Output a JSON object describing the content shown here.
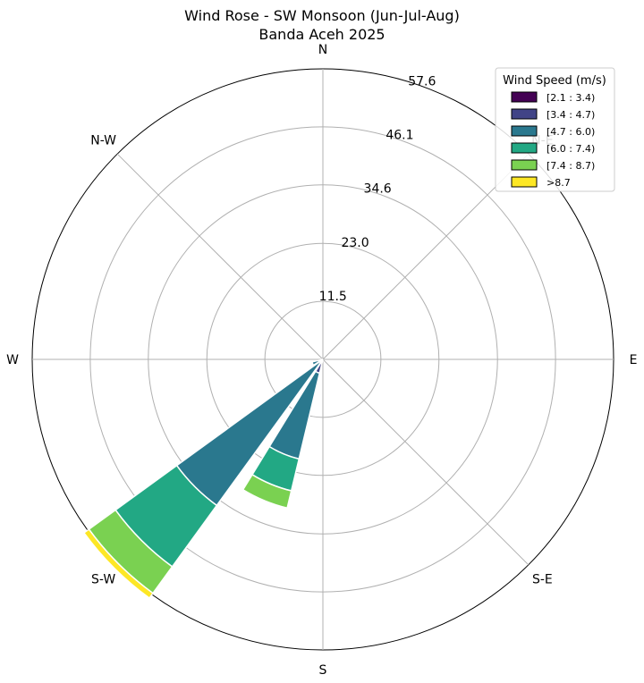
{
  "chart_data": {
    "type": "windrose",
    "title": "Wind Rose - SW Monsoon (Jun-Jul-Aug)",
    "subtitle": "Banda Aceh 2025",
    "directions": [
      "N",
      "N-E",
      "E",
      "S-E",
      "S",
      "S-W",
      "W",
      "N-W"
    ],
    "radial_ticks": [
      "11.5",
      "23.0",
      "34.6",
      "46.1",
      "57.6"
    ],
    "radial_tick_values": [
      11.5,
      23.0,
      34.6,
      46.1,
      57.6
    ],
    "rmax": 57.6,
    "legend": {
      "title": "Wind Speed (m/s)",
      "placement": "top-right",
      "bins": [
        {
          "label": "[2.1 : 3.4)",
          "color": "#440154"
        },
        {
          "label": "[3.4 : 4.7)",
          "color": "#414487"
        },
        {
          "label": "[4.7 : 6.0)",
          "color": "#2a788e"
        },
        {
          "label": "[6.0 : 7.4)",
          "color": "#22a884"
        },
        {
          "label": "[7.4 : 8.7)",
          "color": "#7ad151"
        },
        {
          "label": ">8.7",
          "color": "#fde725"
        }
      ]
    },
    "bars": [
      {
        "direction_deg": 202.5,
        "values": [
          0.3,
          2.5,
          17.5,
          6.5,
          3.5,
          0.0
        ]
      },
      {
        "direction_deg": 225.0,
        "values": [
          0.3,
          0.5,
          35.0,
          15.0,
          6.5,
          1.2
        ]
      },
      {
        "direction_deg": 247.5,
        "values": [
          0.3,
          0.6,
          1.3,
          0.0,
          0.0,
          0.0
        ]
      },
      {
        "direction_deg": 270.0,
        "values": [
          0.2,
          0.0,
          0.0,
          0.0,
          0.0,
          0.0
        ]
      }
    ]
  }
}
